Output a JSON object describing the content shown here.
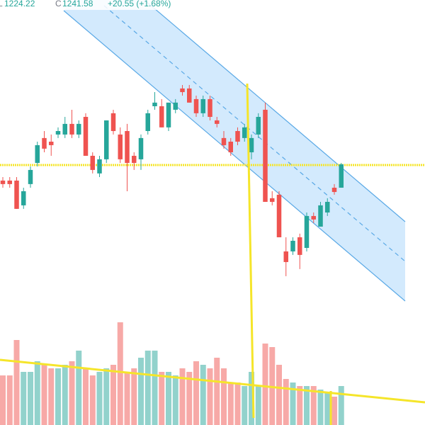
{
  "header": {
    "low_label": "L",
    "low": "1224.22",
    "close_label": "C",
    "close": "1241.58",
    "change": "+20.55 (+1.68%)"
  },
  "chart_data": {
    "type": "candlestick",
    "up_color": "#26a69a",
    "down_color": "#ef5350",
    "ylim": [
      1048.0,
      1363.6
    ],
    "volume_lim": [
      0,
      600
    ],
    "open": [
      1229.5,
      1229.5,
      1229.5,
      1211.1,
      1226.9,
      1242.6,
      1261.1,
      1258.4,
      1263.7,
      1263.7,
      1271.6,
      1263.7,
      1276.8,
      1247.9,
      1234.8,
      1245.3,
      1279.5,
      1263.7,
      1266.3,
      1247.9,
      1245.3,
      1266.3,
      1284.7,
      1284.7,
      1269.0,
      1282.1,
      1297.9,
      1297.9,
      1290.0,
      1279.5,
      1290.0,
      1274.2,
      1261.1,
      1258.4,
      1266.3,
      1261.1,
      1250.5,
      1263.7,
      1282.1,
      1216.4,
      1219.0,
      1176.9,
      1176.9,
      1187.4,
      1179.5,
      1203.2,
      1195.3,
      1205.8,
      1224.2,
      1224.22
    ],
    "high": [
      1232.1,
      1232.1,
      1232.1,
      1224.2,
      1240.0,
      1258.4,
      1266.3,
      1263.7,
      1269.0,
      1276.8,
      1282.1,
      1274.2,
      1279.5,
      1250.5,
      1247.9,
      1274.2,
      1282.1,
      1269.0,
      1271.6,
      1250.5,
      1263.7,
      1282.1,
      1295.2,
      1290.0,
      1287.4,
      1290.0,
      1300.5,
      1300.5,
      1292.6,
      1292.6,
      1292.6,
      1276.8,
      1266.3,
      1261.1,
      1269.0,
      1271.6,
      1263.7,
      1279.5,
      1287.4,
      1221.6,
      1221.6,
      1187.4,
      1187.4,
      1190.1,
      1205.8,
      1205.8,
      1213.7,
      1216.4,
      1226.9,
      1242.6
    ],
    "low": [
      1224.2,
      1224.2,
      1208.5,
      1208.5,
      1224.2,
      1240.0,
      1250.5,
      1247.9,
      1261.1,
      1261.1,
      1261.1,
      1261.1,
      1247.9,
      1234.8,
      1232.1,
      1242.6,
      1263.7,
      1242.6,
      1221.6,
      1237.4,
      1237.4,
      1263.7,
      1282.1,
      1269.0,
      1266.3,
      1279.5,
      1292.6,
      1287.4,
      1276.8,
      1276.8,
      1274.2,
      1269.0,
      1253.2,
      1247.9,
      1255.8,
      1258.4,
      1245.3,
      1261.1,
      1213.7,
      1211.1,
      1187.4,
      1158.5,
      1174.3,
      1163.8,
      1176.9,
      1198.0,
      1195.3,
      1203.2,
      1219.0,
      1224.22
    ],
    "close": [
      1226.9,
      1226.9,
      1208.5,
      1221.6,
      1237.4,
      1255.8,
      1253.2,
      1255.8,
      1266.3,
      1271.6,
      1263.7,
      1271.6,
      1247.9,
      1237.4,
      1245.3,
      1274.2,
      1266.3,
      1245.3,
      1242.6,
      1242.6,
      1261.1,
      1279.5,
      1287.4,
      1269.0,
      1287.4,
      1287.4,
      1295.2,
      1287.4,
      1279.5,
      1290.0,
      1276.8,
      1271.6,
      1255.8,
      1250.5,
      1258.4,
      1269.0,
      1261.1,
      1276.8,
      1213.7,
      1213.7,
      1187.4,
      1169.0,
      1184.8,
      1174.3,
      1203.2,
      1200.6,
      1211.1,
      1213.7,
      1221.03,
      1241.58
    ],
    "volume": [
      70,
      70,
      120,
      75,
      75,
      90,
      85,
      80,
      80,
      85,
      90,
      105,
      80,
      70,
      75,
      80,
      85,
      145,
      75,
      80,
      95,
      105,
      105,
      75,
      75,
      70,
      80,
      75,
      90,
      85,
      80,
      95,
      80,
      60,
      60,
      55,
      75,
      55,
      115,
      110,
      85,
      65,
      60,
      55,
      55,
      55,
      50,
      45,
      40,
      55
    ]
  }
}
